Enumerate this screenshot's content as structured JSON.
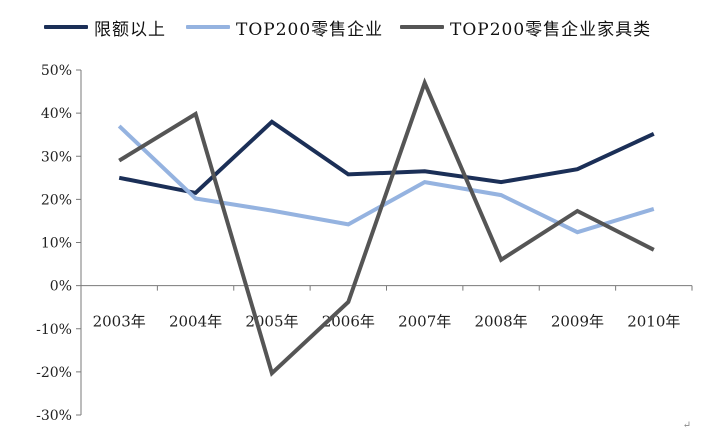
{
  "chart_data": {
    "type": "line",
    "title": "",
    "xlabel": "",
    "ylabel": "",
    "categories": [
      "2003年",
      "2004年",
      "2005年",
      "2006年",
      "2007年",
      "2008年",
      "2009年",
      "2010年"
    ],
    "ylim": [
      -30,
      50
    ],
    "yticks": [
      "50%",
      "40%",
      "30%",
      "20%",
      "10%",
      "0%",
      "-10%",
      "-20%",
      "-30%"
    ],
    "ytick_values": [
      50,
      40,
      30,
      20,
      10,
      0,
      -10,
      -20,
      -30
    ],
    "grid": false,
    "legend_position": "top",
    "series": [
      {
        "name": "限额以上",
        "color": "#1b2f57",
        "values": [
          25,
          21.5,
          38,
          25.8,
          26.5,
          24,
          27,
          35.2
        ]
      },
      {
        "name": "TOP200零售企业",
        "color": "#95b3e0",
        "values": [
          37,
          20.2,
          17.4,
          14.2,
          24,
          21,
          12.4,
          17.8
        ]
      },
      {
        "name": "TOP200零售企业家具类",
        "color": "#555555",
        "values": [
          29,
          39.8,
          -20.3,
          -3.8,
          47,
          6,
          17.3,
          8.3
        ]
      }
    ]
  },
  "corner_mark": "↵"
}
